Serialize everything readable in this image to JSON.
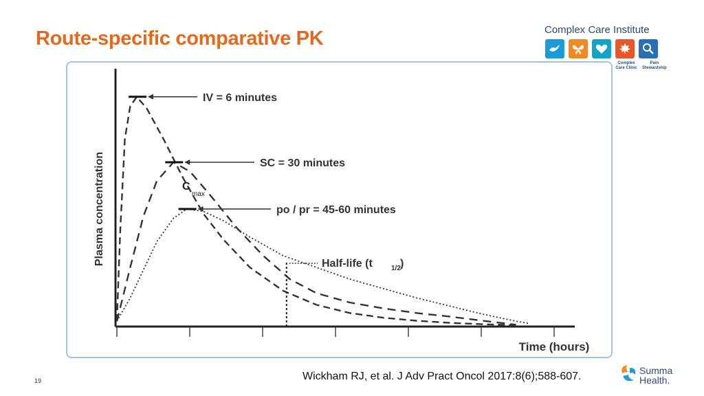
{
  "slide": {
    "title": "Route-specific comparative PK",
    "number": "19",
    "citation": "Wickham RJ, et al. J Adv Pract Oncol 2017:8(6);588-607."
  },
  "logo": {
    "title": "Complex Care Institute",
    "icons": [
      {
        "icon": "dove-icon",
        "color": "#1b9cd8"
      },
      {
        "icon": "butterfly-icon",
        "color": "#f08a22"
      },
      {
        "icon": "heart-hands-icon",
        "color": "#12a4c8"
      },
      {
        "icon": "maple-leaf-icon",
        "color": "#e8572a"
      },
      {
        "icon": "magnifier-icon",
        "color": "#2a6fb5"
      }
    ],
    "sub_labels": [
      "Complex\nCare Clinic",
      "Pain\nStewardship"
    ]
  },
  "summa": {
    "name": "Summa\nHealth.",
    "color_primary": "#f08a22",
    "color_secondary": "#1b9cd8"
  },
  "chart_data": {
    "type": "line",
    "xlabel": "Time (hours)",
    "ylabel": "Plasma concentration",
    "ticks": [
      0,
      1,
      2,
      3,
      4,
      5,
      6
    ],
    "xlim": [
      0,
      6.2
    ],
    "ylim": [
      0,
      1
    ],
    "grid": false,
    "cmax_label": "C",
    "cmax_sub": "max",
    "half_life_label": "Half-life (t",
    "half_life_sub": "1/2",
    "half_life_close": ")",
    "half_life_x": 2.55,
    "series": [
      {
        "name": "IV = 6 minutes",
        "style": "dashed-long",
        "peak": [
          0.3,
          0.98
        ],
        "points": [
          [
            0,
            0.02
          ],
          [
            0.05,
            0.4
          ],
          [
            0.12,
            0.8
          ],
          [
            0.2,
            0.94
          ],
          [
            0.3,
            0.98
          ],
          [
            0.45,
            0.93
          ],
          [
            0.7,
            0.8
          ],
          [
            1.0,
            0.63
          ],
          [
            1.3,
            0.48
          ],
          [
            1.6,
            0.37
          ],
          [
            2.0,
            0.25
          ],
          [
            2.5,
            0.15
          ],
          [
            3.0,
            0.09
          ],
          [
            3.5,
            0.055
          ],
          [
            4.0,
            0.035
          ],
          [
            4.5,
            0.022
          ],
          [
            5.0,
            0.013
          ],
          [
            5.5,
            0.007
          ],
          [
            6.0,
            0.003
          ]
        ]
      },
      {
        "name": "SC = 30 minutes",
        "style": "dashed",
        "peak": [
          0.85,
          0.7
        ],
        "points": [
          [
            0,
            0.02
          ],
          [
            0.2,
            0.25
          ],
          [
            0.4,
            0.47
          ],
          [
            0.6,
            0.62
          ],
          [
            0.85,
            0.7
          ],
          [
            1.1,
            0.66
          ],
          [
            1.4,
            0.56
          ],
          [
            1.8,
            0.42
          ],
          [
            2.2,
            0.3
          ],
          [
            2.6,
            0.2
          ],
          [
            3.0,
            0.14
          ],
          [
            3.5,
            0.1
          ],
          [
            4.0,
            0.075
          ],
          [
            4.5,
            0.055
          ],
          [
            5.0,
            0.04
          ],
          [
            5.5,
            0.022
          ],
          [
            6.0,
            0.005
          ]
        ]
      },
      {
        "name": "po / pr = 45-60 minutes",
        "style": "dotted",
        "peak": [
          1.05,
          0.5
        ],
        "points": [
          [
            0,
            0.02
          ],
          [
            0.2,
            0.12
          ],
          [
            0.4,
            0.24
          ],
          [
            0.6,
            0.36
          ],
          [
            0.85,
            0.46
          ],
          [
            1.05,
            0.5
          ],
          [
            1.3,
            0.49
          ],
          [
            1.6,
            0.45
          ],
          [
            2.0,
            0.38
          ],
          [
            2.5,
            0.3
          ],
          [
            3.0,
            0.25
          ],
          [
            3.5,
            0.2
          ],
          [
            4.0,
            0.16
          ],
          [
            4.5,
            0.12
          ],
          [
            5.0,
            0.085
          ],
          [
            5.5,
            0.05
          ],
          [
            6.0,
            0.02
          ],
          [
            6.2,
            0.01
          ]
        ]
      }
    ]
  }
}
